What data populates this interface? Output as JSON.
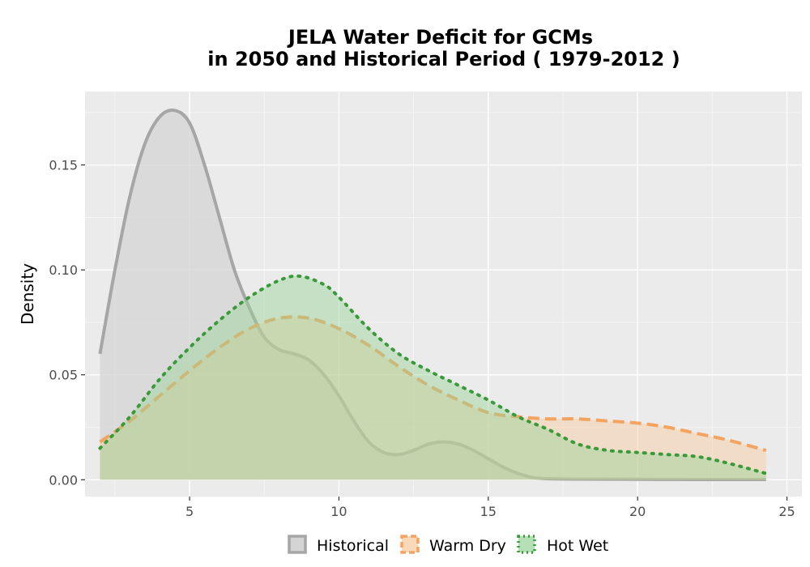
{
  "chart_data": {
    "type": "area",
    "title_lines": [
      "JELA  Water Deficit for GCMs",
      "in 2050 and Historical Period ( 1979-2012 )"
    ],
    "xlabel": "",
    "ylabel": "Density",
    "xlim": [
      1.5,
      25.5
    ],
    "ylim": [
      -0.008,
      0.185
    ],
    "x_ticks": [
      5,
      10,
      15,
      20,
      25
    ],
    "x_tick_labels": [
      "5",
      "10",
      "15",
      "20",
      "25"
    ],
    "y_ticks": [
      0.0,
      0.05,
      0.1,
      0.15
    ],
    "y_tick_labels": [
      "0.00",
      "0.05",
      "0.10",
      "0.15"
    ],
    "grid": true,
    "legend_position": "bottom",
    "series": [
      {
        "name": "Historical",
        "color": "#a6a6a6",
        "fill": "#d4d4d4",
        "fill_opacity": 0.75,
        "line_style": "solid",
        "x": [
          2.0,
          2.5,
          3.0,
          3.5,
          4.0,
          4.5,
          5.0,
          5.5,
          6.0,
          6.5,
          7.0,
          7.5,
          8.0,
          8.5,
          9.0,
          9.5,
          10.0,
          10.5,
          11.0,
          11.5,
          12.0,
          12.5,
          13.0,
          13.5,
          14.0,
          14.5,
          15.0,
          15.5,
          16.0,
          16.5,
          17.0,
          18.0,
          20.0,
          22.0,
          24.3
        ],
        "y": [
          0.06,
          0.1,
          0.135,
          0.16,
          0.173,
          0.176,
          0.17,
          0.15,
          0.125,
          0.1,
          0.082,
          0.068,
          0.062,
          0.06,
          0.057,
          0.05,
          0.04,
          0.028,
          0.018,
          0.013,
          0.012,
          0.014,
          0.017,
          0.018,
          0.017,
          0.014,
          0.01,
          0.006,
          0.003,
          0.001,
          0.0005,
          0.0003,
          0.0002,
          0.0001,
          0.0001
        ]
      },
      {
        "name": "Warm Dry",
        "color": "#f4a460",
        "fill": "#f7c99b",
        "fill_opacity": 0.45,
        "line_style": "dashed",
        "x": [
          2.0,
          3.0,
          4.0,
          5.0,
          6.0,
          7.0,
          8.0,
          9.0,
          10.0,
          11.0,
          12.0,
          13.0,
          14.0,
          15.0,
          16.0,
          17.0,
          18.0,
          19.0,
          20.0,
          21.0,
          22.0,
          23.0,
          24.3
        ],
        "y": [
          0.018,
          0.028,
          0.04,
          0.052,
          0.063,
          0.072,
          0.077,
          0.077,
          0.072,
          0.064,
          0.054,
          0.045,
          0.038,
          0.032,
          0.03,
          0.029,
          0.029,
          0.028,
          0.027,
          0.025,
          0.022,
          0.019,
          0.014
        ]
      },
      {
        "name": "Hot Wet",
        "color": "#3a9a3a",
        "fill": "#96d296",
        "fill_opacity": 0.45,
        "line_style": "dotted",
        "x": [
          2.0,
          3.0,
          4.0,
          5.0,
          6.0,
          7.0,
          8.0,
          8.7,
          9.5,
          10.0,
          11.0,
          12.0,
          13.0,
          14.0,
          15.0,
          16.0,
          17.0,
          18.0,
          19.0,
          20.0,
          21.0,
          22.0,
          23.0,
          24.3
        ],
        "y": [
          0.015,
          0.03,
          0.048,
          0.063,
          0.076,
          0.087,
          0.095,
          0.097,
          0.093,
          0.087,
          0.072,
          0.06,
          0.052,
          0.045,
          0.038,
          0.03,
          0.024,
          0.017,
          0.014,
          0.013,
          0.012,
          0.011,
          0.008,
          0.003
        ]
      }
    ]
  }
}
